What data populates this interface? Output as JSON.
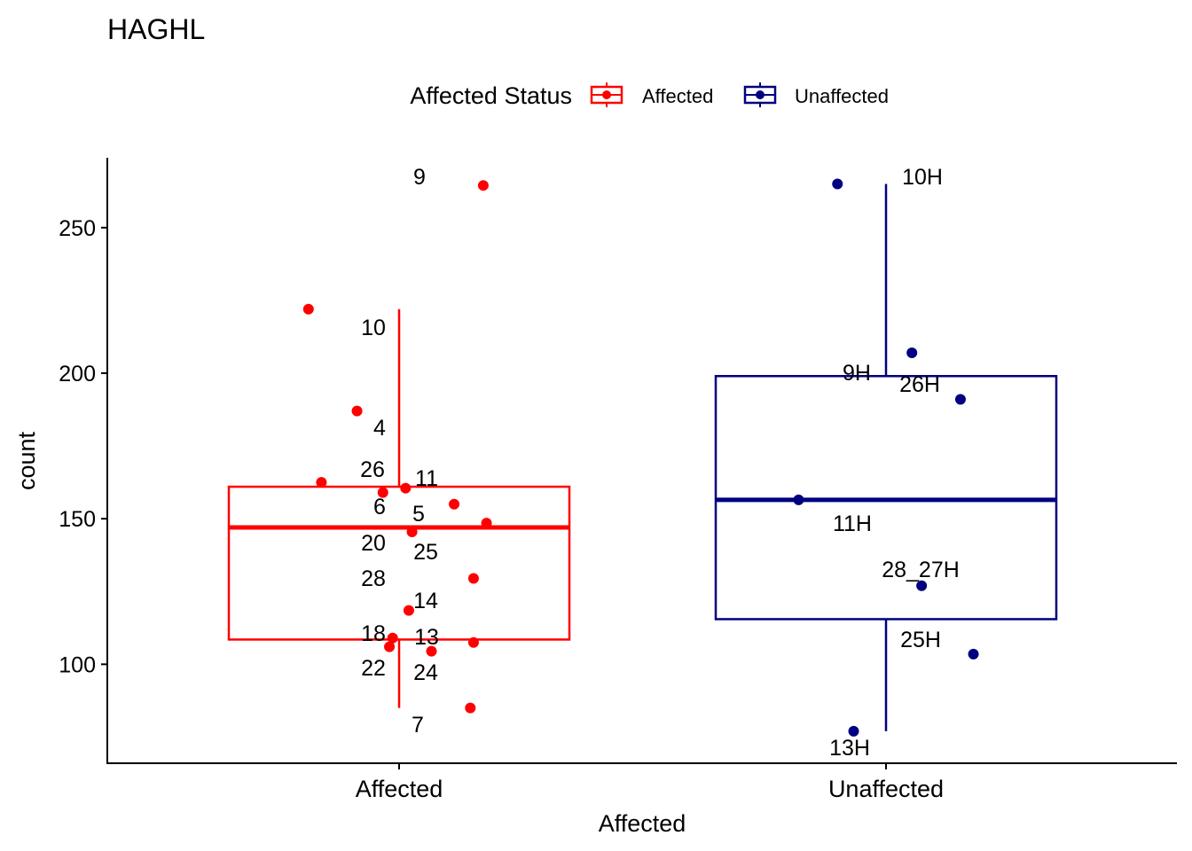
{
  "chart_data": {
    "type": "boxplot",
    "title": "HAGHL",
    "xlabel": "Affected",
    "ylabel": "count",
    "ylim": [
      66,
      274
    ],
    "yticks": [
      100,
      150,
      200,
      250
    ],
    "categories": [
      "Affected",
      "Unaffected"
    ],
    "legend": {
      "title": "Affected Status",
      "position": "top",
      "entries": [
        "Affected",
        "Unaffected"
      ]
    },
    "colors": {
      "Affected": "#FF0000",
      "Unaffected": "#000080"
    },
    "boxes": [
      {
        "category": "Affected",
        "q1": 108.5,
        "median": 147,
        "q3": 161,
        "whisker_low": 85,
        "whisker_high": 222
      },
      {
        "category": "Unaffected",
        "q1": 115.5,
        "median": 156.5,
        "q3": 199,
        "whisker_low": 77,
        "whisker_high": 265
      }
    ],
    "series": [
      {
        "name": "Affected",
        "points": [
          {
            "label": "9",
            "y": 264.5,
            "jitter": 0.26
          },
          {
            "label": "10",
            "y": 222,
            "jitter": -0.28
          },
          {
            "label": "4",
            "y": 187,
            "jitter": -0.13
          },
          {
            "label": "26",
            "y": 162.5,
            "jitter": -0.24
          },
          {
            "label": "11",
            "y": 160.5,
            "jitter": 0.02
          },
          {
            "label": "6",
            "y": 159,
            "jitter": -0.05
          },
          {
            "label": "5",
            "y": 155,
            "jitter": 0.17
          },
          {
            "label": "25",
            "y": 148.5,
            "jitter": 0.27
          },
          {
            "label": "20",
            "y": 145.5,
            "jitter": 0.04
          },
          {
            "label": "28",
            "y": 129.5,
            "jitter": 0.23
          },
          {
            "label": "14",
            "y": 118.5,
            "jitter": 0.03
          },
          {
            "label": "18",
            "y": 109,
            "jitter": -0.02
          },
          {
            "label": "13",
            "y": 107.5,
            "jitter": 0.23
          },
          {
            "label": "22",
            "y": 106,
            "jitter": -0.03
          },
          {
            "label": "24",
            "y": 104.5,
            "jitter": 0.1
          },
          {
            "label": "7",
            "y": 85,
            "jitter": 0.22
          }
        ]
      },
      {
        "name": "Unaffected",
        "points": [
          {
            "label": "10H",
            "y": 265,
            "jitter": -0.15
          },
          {
            "label": "26H",
            "y": 207,
            "jitter": 0.08
          },
          {
            "label": "9H",
            "y": 191,
            "jitter": 0.23
          },
          {
            "label": "11H",
            "y": 156.5,
            "jitter": -0.27
          },
          {
            "label": "28_27H",
            "y": 127,
            "jitter": 0.11
          },
          {
            "label": "25H",
            "y": 103.5,
            "jitter": 0.27
          },
          {
            "label": "13H",
            "y": 77,
            "jitter": -0.1
          }
        ]
      }
    ]
  }
}
